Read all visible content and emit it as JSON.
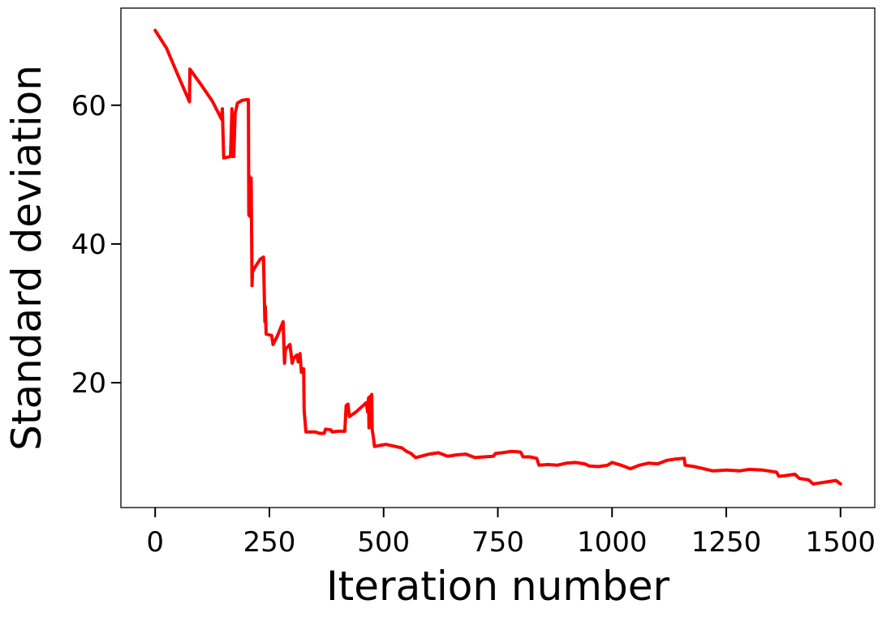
{
  "chart_data": {
    "type": "line",
    "title": "",
    "xlabel": "Iteration number",
    "ylabel": "Standard deviation",
    "xlim": [
      -75,
      1575
    ],
    "ylim": [
      2,
      74
    ],
    "xticks": [
      0,
      250,
      500,
      750,
      1000,
      1250,
      1500
    ],
    "yticks": [
      20,
      40,
      60
    ],
    "grid": false,
    "legend": "none",
    "series": [
      {
        "color": "#ff0000",
        "points": [
          [
            0,
            70.8
          ],
          [
            25,
            68.2
          ],
          [
            50,
            64.3
          ],
          [
            75,
            60.5
          ],
          [
            76,
            65.2
          ],
          [
            100,
            63.0
          ],
          [
            125,
            60.6
          ],
          [
            145,
            58.0
          ],
          [
            147,
            59.5
          ],
          [
            148,
            56.8
          ],
          [
            150,
            52.4
          ],
          [
            165,
            52.6
          ],
          [
            168,
            59.5
          ],
          [
            170,
            52.6
          ],
          [
            172,
            52.6
          ],
          [
            175,
            58.8
          ],
          [
            180,
            60.3
          ],
          [
            185,
            60.5
          ],
          [
            190,
            60.7
          ],
          [
            200,
            60.8
          ],
          [
            204,
            60.8
          ],
          [
            205,
            44.2
          ],
          [
            206,
            49.8
          ],
          [
            207,
            44.0
          ],
          [
            210,
            49.5
          ],
          [
            212,
            34.0
          ],
          [
            213,
            36.0
          ],
          [
            220,
            36.8
          ],
          [
            230,
            37.8
          ],
          [
            237,
            38.1
          ],
          [
            240,
            28.8
          ],
          [
            241,
            31.0
          ],
          [
            243,
            27.0
          ],
          [
            255,
            26.8
          ],
          [
            258,
            25.5
          ],
          [
            268,
            26.8
          ],
          [
            280,
            28.8
          ],
          [
            283,
            22.8
          ],
          [
            285,
            24.8
          ],
          [
            295,
            25.5
          ],
          [
            300,
            22.8
          ],
          [
            303,
            23.5
          ],
          [
            310,
            24.0
          ],
          [
            313,
            23.0
          ],
          [
            317,
            24.2
          ],
          [
            320,
            21.5
          ],
          [
            325,
            22.0
          ],
          [
            326,
            16.0
          ],
          [
            330,
            12.9
          ],
          [
            350,
            12.9
          ],
          [
            360,
            12.7
          ],
          [
            370,
            12.7
          ],
          [
            373,
            13.3
          ],
          [
            385,
            13.2
          ],
          [
            387,
            12.9
          ],
          [
            400,
            13.0
          ],
          [
            410,
            13.0
          ],
          [
            415,
            13.0
          ],
          [
            418,
            16.7
          ],
          [
            422,
            16.9
          ],
          [
            425,
            15.1
          ],
          [
            440,
            15.8
          ],
          [
            450,
            16.4
          ],
          [
            462,
            17.1
          ],
          [
            465,
            15.8
          ],
          [
            467,
            17.8
          ],
          [
            468,
            13.5
          ],
          [
            470,
            18.0
          ],
          [
            472,
            14.2
          ],
          [
            474,
            18.3
          ],
          [
            475,
            13.2
          ],
          [
            478,
            11.9
          ],
          [
            480,
            10.8
          ],
          [
            495,
            11.0
          ],
          [
            505,
            11.1
          ],
          [
            520,
            10.9
          ],
          [
            540,
            10.6
          ],
          [
            550,
            10.1
          ],
          [
            560,
            9.8
          ],
          [
            570,
            9.2
          ],
          [
            600,
            9.7
          ],
          [
            620,
            9.9
          ],
          [
            640,
            9.4
          ],
          [
            660,
            9.6
          ],
          [
            680,
            9.7
          ],
          [
            700,
            9.2
          ],
          [
            720,
            9.3
          ],
          [
            740,
            9.4
          ],
          [
            745,
            9.8
          ],
          [
            760,
            9.9
          ],
          [
            780,
            10.1
          ],
          [
            800,
            10.0
          ],
          [
            805,
            9.3
          ],
          [
            820,
            9.3
          ],
          [
            835,
            9.1
          ],
          [
            840,
            8.1
          ],
          [
            860,
            8.2
          ],
          [
            880,
            8.1
          ],
          [
            900,
            8.4
          ],
          [
            920,
            8.5
          ],
          [
            940,
            8.3
          ],
          [
            950,
            8.0
          ],
          [
            970,
            7.9
          ],
          [
            990,
            8.1
          ],
          [
            1000,
            8.5
          ],
          [
            1020,
            8.1
          ],
          [
            1040,
            7.6
          ],
          [
            1060,
            8.1
          ],
          [
            1080,
            8.4
          ],
          [
            1100,
            8.3
          ],
          [
            1120,
            8.8
          ],
          [
            1140,
            9.0
          ],
          [
            1158,
            9.1
          ],
          [
            1160,
            8.1
          ],
          [
            1180,
            7.9
          ],
          [
            1200,
            7.6
          ],
          [
            1220,
            7.3
          ],
          [
            1250,
            7.4
          ],
          [
            1280,
            7.3
          ],
          [
            1300,
            7.5
          ],
          [
            1330,
            7.4
          ],
          [
            1360,
            7.1
          ],
          [
            1365,
            6.5
          ],
          [
            1380,
            6.6
          ],
          [
            1400,
            6.8
          ],
          [
            1410,
            6.2
          ],
          [
            1430,
            6.0
          ],
          [
            1440,
            5.4
          ],
          [
            1460,
            5.6
          ],
          [
            1480,
            5.8
          ],
          [
            1490,
            5.9
          ],
          [
            1500,
            5.4
          ]
        ]
      }
    ]
  }
}
